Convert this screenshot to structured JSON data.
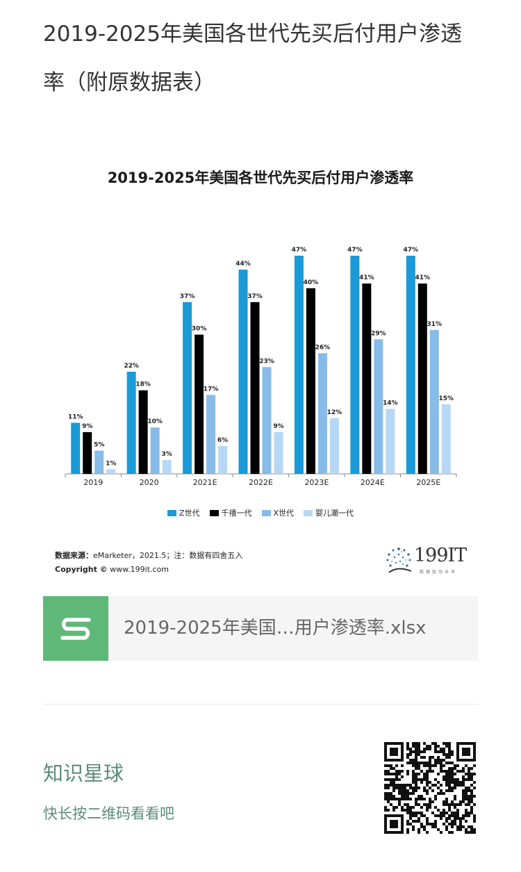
{
  "page": {
    "title": "2019-2025年美国各世代先买后付用户渗透率（附原数据表）"
  },
  "chart_data": {
    "type": "bar",
    "title": "2019-2025年美国各世代先买后付用户渗透率",
    "categories": [
      "2019",
      "2020",
      "2021E",
      "2022E",
      "2023E",
      "2024E",
      "2025E"
    ],
    "series": [
      {
        "name": "Z世代",
        "color": "#1a9ad6",
        "values": [
          11,
          22,
          37,
          44,
          47,
          47,
          47
        ]
      },
      {
        "name": "千禧一代",
        "color": "#000000",
        "values": [
          9,
          18,
          30,
          37,
          40,
          41,
          41
        ]
      },
      {
        "name": "X世代",
        "color": "#87bbe8",
        "values": [
          5,
          10,
          17,
          23,
          26,
          29,
          31
        ]
      },
      {
        "name": "婴儿潮一代",
        "color": "#b7d8f5",
        "values": [
          1,
          3,
          6,
          9,
          12,
          14,
          15
        ]
      }
    ],
    "value_suffix": "%",
    "ylim": [
      0,
      47
    ],
    "grid": false,
    "legend_position": "bottom"
  },
  "source": {
    "label": "数据来源：",
    "text": "eMarketer，2021.5；注：数据有四舍五入",
    "copyright_label": "Copyright ©",
    "copyright_text": "www.199it.com"
  },
  "logo": {
    "text": "199IT",
    "sub": "数据驱动未来"
  },
  "file": {
    "name": "2019-2025年美国…用户渗透率.xlsx",
    "icon": "spreadsheet-s-icon"
  },
  "promo": {
    "title": "知识星球",
    "subtitle": "快长按二维码看看吧"
  }
}
